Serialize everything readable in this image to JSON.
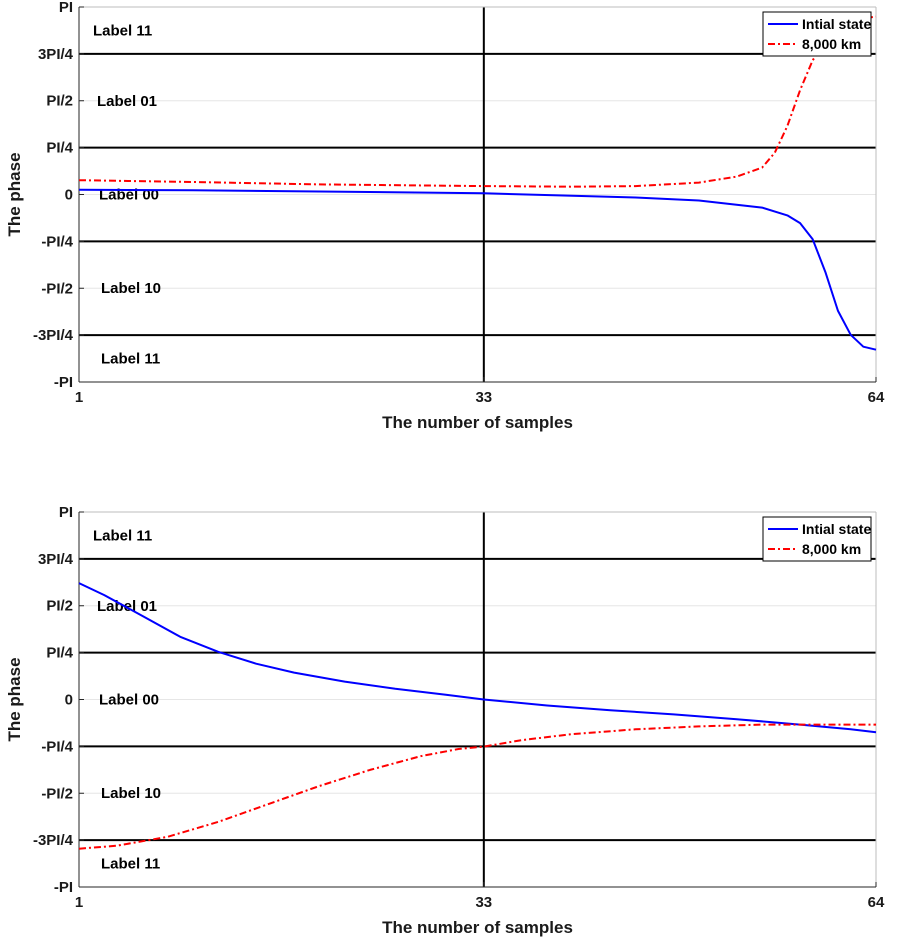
{
  "chart_data": [
    {
      "type": "line",
      "title": "",
      "xlabel": "The number of samples",
      "ylabel": "The phase",
      "xlim": [
        1,
        64
      ],
      "ylim": [
        -3.14159,
        3.14159
      ],
      "xtick_values": [
        1,
        33,
        64
      ],
      "xtick_labels": [
        "1",
        "33",
        "64"
      ],
      "ytick_values": [
        3.14159,
        2.35619,
        1.5708,
        0.7854,
        0,
        -0.7854,
        -1.5708,
        -2.35619,
        -3.14159
      ],
      "ytick_labels": [
        "PI",
        "3PI/4",
        "PI/2",
        "PI/4",
        "0",
        "-PI/4",
        "-PI/2",
        "-3PI/4",
        "-PI"
      ],
      "region_labels": [
        {
          "text": "Label 11",
          "y": 2.75
        },
        {
          "text": "Label 01",
          "y": 1.57
        },
        {
          "text": "Label 00",
          "y": 0
        },
        {
          "text": "Label 10",
          "y": -1.57
        },
        {
          "text": "Label 11",
          "y": -2.75
        }
      ],
      "legend": {
        "location": "top-right"
      },
      "series": [
        {
          "name": "Intial state",
          "color": "#0000ff",
          "style": "solid",
          "x": [
            1,
            10,
            20,
            33,
            40,
            45,
            50,
            55,
            57,
            58,
            59,
            60,
            61,
            62,
            63,
            64
          ],
          "values": [
            0.08,
            0.07,
            0.05,
            0.02,
            -0.02,
            -0.05,
            -0.1,
            -0.22,
            -0.35,
            -0.48,
            -0.75,
            -1.3,
            -1.95,
            -2.35,
            -2.55,
            -2.6
          ]
        },
        {
          "name": "8,000 km",
          "color": "#ff0000",
          "style": "dashdot",
          "x": [
            1,
            10,
            20,
            33,
            40,
            45,
            50,
            53,
            55,
            56,
            57,
            58,
            59,
            60,
            61,
            62,
            63,
            64
          ],
          "values": [
            0.24,
            0.21,
            0.17,
            0.14,
            0.13,
            0.14,
            0.2,
            0.3,
            0.45,
            0.7,
            1.15,
            1.75,
            2.25,
            2.55,
            2.75,
            2.88,
            2.95,
            2.98
          ]
        }
      ]
    },
    {
      "type": "line",
      "title": "",
      "xlabel": "The number of samples",
      "ylabel": "The phase",
      "xlim": [
        1,
        64
      ],
      "ylim": [
        -3.14159,
        3.14159
      ],
      "xtick_values": [
        1,
        33,
        64
      ],
      "xtick_labels": [
        "1",
        "33",
        "64"
      ],
      "ytick_values": [
        3.14159,
        2.35619,
        1.5708,
        0.7854,
        0,
        -0.7854,
        -1.5708,
        -2.35619,
        -3.14159
      ],
      "ytick_labels": [
        "PI",
        "3PI/4",
        "PI/2",
        "PI/4",
        "0",
        "-PI/4",
        "-PI/2",
        "-3PI/4",
        "-PI"
      ],
      "region_labels": [
        {
          "text": "Label 11",
          "y": 2.75
        },
        {
          "text": "Label 01",
          "y": 1.57
        },
        {
          "text": "Label 00",
          "y": 0
        },
        {
          "text": "Label 10",
          "y": -1.57
        },
        {
          "text": "Label 11",
          "y": -2.75
        }
      ],
      "legend": {
        "location": "top-right"
      },
      "series": [
        {
          "name": "Intial state",
          "color": "#0000ff",
          "style": "solid",
          "x": [
            1,
            3,
            6,
            9,
            12,
            15,
            18,
            22,
            26,
            30,
            33,
            38,
            43,
            48,
            53,
            58,
            62,
            64
          ],
          "values": [
            1.95,
            1.75,
            1.4,
            1.05,
            0.8,
            0.6,
            0.45,
            0.3,
            0.18,
            0.08,
            0.0,
            -0.1,
            -0.18,
            -0.25,
            -0.33,
            -0.42,
            -0.5,
            -0.55
          ]
        },
        {
          "name": "8,000 km",
          "color": "#ff0000",
          "style": "dashdot",
          "x": [
            1,
            4,
            8,
            12,
            16,
            20,
            24,
            28,
            31,
            33,
            36,
            40,
            45,
            50,
            55,
            60,
            64
          ],
          "values": [
            -2.5,
            -2.45,
            -2.3,
            -2.05,
            -1.75,
            -1.45,
            -1.18,
            -0.95,
            -0.83,
            -0.79,
            -0.68,
            -0.58,
            -0.5,
            -0.45,
            -0.42,
            -0.42,
            -0.42
          ]
        }
      ]
    }
  ]
}
